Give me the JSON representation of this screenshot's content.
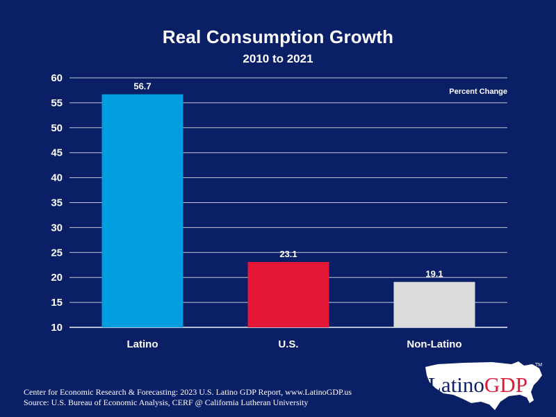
{
  "header": {
    "title": "Real Consumption Growth",
    "subtitle": "2010 to 2021"
  },
  "chart_data": {
    "type": "bar",
    "title": "Real Consumption Growth",
    "subtitle": "2010 to 2021",
    "unit_label": "Percent Change",
    "categories": [
      "Latino",
      "U.S.",
      "Non-Latino"
    ],
    "values": [
      56.7,
      23.1,
      19.1
    ],
    "data_labels": [
      "56.7",
      "23.1",
      "19.1"
    ],
    "bar_colors": [
      "#009ee0",
      "#e31837",
      "#dcdcdc"
    ],
    "ylim": [
      10,
      60
    ],
    "yticks": [
      10,
      15,
      20,
      25,
      30,
      35,
      40,
      45,
      50,
      55,
      60
    ],
    "grid": true,
    "xlabel": "",
    "ylabel": ""
  },
  "footer": {
    "line1": "Center for Economic Research & Forecasting: 2023 U.S. Latino GDP Report, www.LatinoGDP.us",
    "line2": "Source: U.S. Bureau of Economic Analysis, CERF @ California Lutheran University"
  },
  "logo": {
    "part1": "Latino",
    "part2": "GDP",
    "trademark": "TM",
    "icon": "usa-map-icon",
    "color_primary": "#0a1f66",
    "color_accent": "#e31837"
  }
}
